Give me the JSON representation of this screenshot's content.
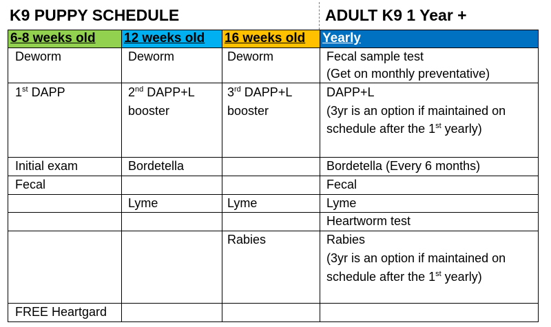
{
  "titles": {
    "puppy": "K9 PUPPY SCHEDULE",
    "adult": "ADULT K9 1 Year +"
  },
  "headers": [
    "6-8 weeks old",
    "12  weeks old",
    "16 weeks old",
    "Yearly"
  ],
  "header_colors": [
    "#92d050",
    "#00b0f0",
    "#ffc000",
    "#0070c0"
  ],
  "rows": {
    "deworm": {
      "c1": "Deworm",
      "c2": "Deworm",
      "c3": "Deworm",
      "c4_line1": "Fecal sample test",
      "c4_line2": "(Get on monthly preventative)"
    },
    "dapp": {
      "c1_pre": "1",
      "c1_sup": "st",
      "c1_post": " DAPP",
      "c2_pre": "2",
      "c2_sup": "nd",
      "c2_post": " DAPP+L",
      "c2_line2": "booster",
      "c3_pre": "3",
      "c3_sup": "rd",
      "c3_post": " DAPP+L",
      "c3_line2": "booster",
      "c4_line1": "DAPP+L",
      "c4_line2": "(3yr is an option if maintained on",
      "c4_line3_pre": "schedule after the 1",
      "c4_line3_sup": "st",
      "c4_line3_post": " yearly)"
    },
    "exam": {
      "c1": "Initial exam",
      "c2": "Bordetella",
      "c4": "Bordetella (Every 6 months)"
    },
    "fecal": {
      "c1": "Fecal",
      "c4": "Fecal"
    },
    "lyme": {
      "c2": "Lyme",
      "c3": "Lyme",
      "c4": "Lyme"
    },
    "heartworm": {
      "c4": "Heartworm test"
    },
    "rabies": {
      "c3": "Rabies",
      "c4_line1": "Rabies",
      "c4_line2": "(3yr is an option if maintained on",
      "c4_line3_pre": "schedule after the 1",
      "c4_line3_sup": "st",
      "c4_line3_post": " yearly)"
    },
    "heartgard": {
      "c1": "FREE Heartgard"
    }
  }
}
